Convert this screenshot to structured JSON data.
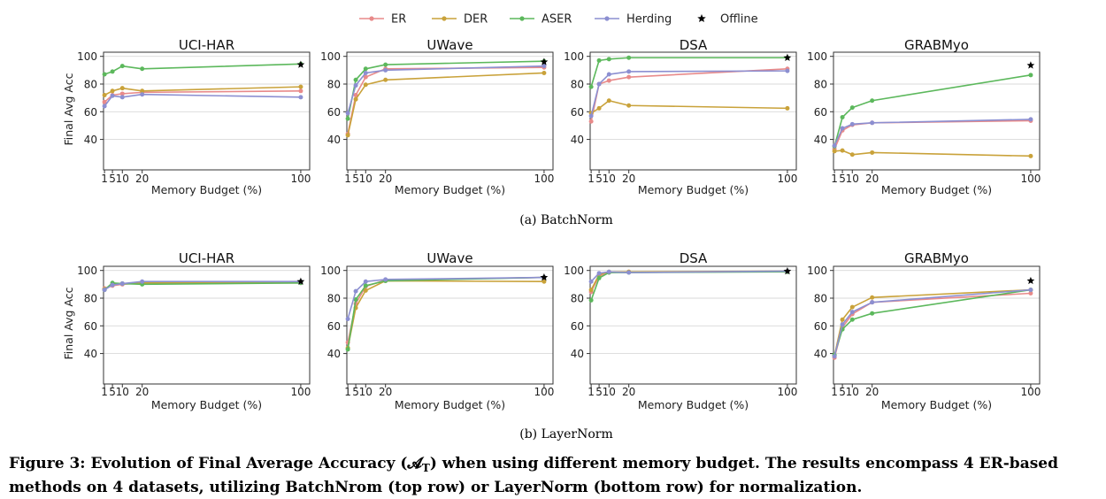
{
  "legend": {
    "items": [
      {
        "name": "ER",
        "color": "#e88a8a",
        "marker": "circle"
      },
      {
        "name": "DER",
        "color": "#c9a23a",
        "marker": "circle"
      },
      {
        "name": "ASER",
        "color": "#5cb85c",
        "marker": "circle"
      },
      {
        "name": "Herding",
        "color": "#8c8fd1",
        "marker": "circle"
      },
      {
        "name": "Offline",
        "color": "#000000",
        "marker": "star"
      }
    ]
  },
  "rows": [
    {
      "caption": "(a)  BatchNorm"
    },
    {
      "caption": "(b)  LayerNorm"
    }
  ],
  "figure_caption": {
    "line1": "Figure 3: Evolution of Final Average Accuracy (𝓐",
    "line1_sub": "T",
    "line1_rest": ") when using different memory budget. The results encompass 4 ER-based",
    "line2": "methods on 4 datasets, utilizing BatchNrom (top row) or LayerNorm (bottom row) for normalization."
  },
  "chart_data": [
    {
      "type": "line",
      "row": 0,
      "title": "UCI-HAR",
      "xlabel": "Memory Budget (%)",
      "ylabel": "Final Avg Acc",
      "x": [
        1,
        5,
        10,
        20,
        100
      ],
      "xticks": [
        "1",
        "5",
        "10",
        "20",
        "100"
      ],
      "ylim": [
        18,
        103
      ],
      "yticks": [
        40,
        60,
        80,
        100
      ],
      "series": [
        {
          "name": "ER",
          "values": [
            67,
            72,
            73,
            74,
            75
          ]
        },
        {
          "name": "DER",
          "values": [
            72,
            75,
            77,
            75,
            78
          ]
        },
        {
          "name": "ASER",
          "values": [
            87,
            89,
            93,
            91,
            94.5
          ]
        },
        {
          "name": "Herding",
          "values": [
            64,
            71.5,
            70.5,
            72.5,
            70.5
          ]
        }
      ],
      "offline": 94
    },
    {
      "type": "line",
      "row": 0,
      "title": "UWave",
      "xlabel": "Memory Budget (%)",
      "ylabel": "",
      "x": [
        1,
        5,
        10,
        20,
        100
      ],
      "xticks": [
        "1",
        "5",
        "10",
        "20",
        "100"
      ],
      "ylim": [
        18,
        103
      ],
      "yticks": [
        40,
        60,
        80,
        100
      ],
      "series": [
        {
          "name": "ER",
          "values": [
            44,
            72,
            85,
            91,
            92
          ]
        },
        {
          "name": "DER",
          "values": [
            43,
            69,
            79.5,
            83,
            88
          ]
        },
        {
          "name": "ASER",
          "values": [
            55,
            83,
            91,
            94,
            96.5
          ]
        },
        {
          "name": "Herding",
          "values": [
            59,
            79,
            88,
            90,
            93
          ]
        }
      ],
      "offline": 96
    },
    {
      "type": "line",
      "row": 0,
      "title": "DSA",
      "xlabel": "Memory Budget (%)",
      "ylabel": "",
      "x": [
        1,
        5,
        10,
        20,
        100
      ],
      "xticks": [
        "1",
        "5",
        "10",
        "20",
        "100"
      ],
      "ylim": [
        18,
        103
      ],
      "yticks": [
        40,
        60,
        80,
        100
      ],
      "series": [
        {
          "name": "ER",
          "values": [
            53,
            80,
            82.5,
            85,
            91
          ]
        },
        {
          "name": "DER",
          "values": [
            59,
            62.5,
            68,
            64.5,
            62.5
          ]
        },
        {
          "name": "ASER",
          "values": [
            78,
            97,
            98,
            99,
            99
          ]
        },
        {
          "name": "Herding",
          "values": [
            57,
            80,
            87,
            89,
            89.5
          ]
        }
      ],
      "offline": 99
    },
    {
      "type": "line",
      "row": 0,
      "title": "GRABMyo",
      "xlabel": "Memory Budget (%)",
      "ylabel": "",
      "x": [
        1,
        5,
        10,
        20,
        100
      ],
      "xticks": [
        "1",
        "5",
        "10",
        "20",
        "100"
      ],
      "ylim": [
        18,
        103
      ],
      "yticks": [
        40,
        60,
        80,
        100
      ],
      "series": [
        {
          "name": "ER",
          "values": [
            33,
            46.5,
            50.5,
            52,
            53.5
          ]
        },
        {
          "name": "DER",
          "values": [
            31.5,
            32,
            29,
            30.5,
            28
          ]
        },
        {
          "name": "ASER",
          "values": [
            35,
            56,
            63,
            68,
            86.5
          ]
        },
        {
          "name": "Herding",
          "values": [
            35.5,
            48,
            51,
            52,
            54.5
          ]
        }
      ],
      "offline": 93.5
    },
    {
      "type": "line",
      "row": 1,
      "title": "UCI-HAR",
      "xlabel": "Memory Budget (%)",
      "ylabel": "Final Avg Acc",
      "x": [
        1,
        5,
        10,
        20,
        100
      ],
      "xticks": [
        "1",
        "5",
        "10",
        "20",
        "100"
      ],
      "ylim": [
        18,
        103
      ],
      "yticks": [
        40,
        60,
        80,
        100
      ],
      "series": [
        {
          "name": "ER",
          "values": [
            87,
            89,
            90,
            91,
            91
          ]
        },
        {
          "name": "DER",
          "values": [
            86.5,
            90,
            90.5,
            91,
            92
          ]
        },
        {
          "name": "ASER",
          "values": [
            86,
            91,
            90.5,
            90,
            91
          ]
        },
        {
          "name": "Herding",
          "values": [
            86,
            89.5,
            90.5,
            92,
            92
          ]
        }
      ],
      "offline": 92
    },
    {
      "type": "line",
      "row": 1,
      "title": "UWave",
      "xlabel": "Memory Budget (%)",
      "ylabel": "",
      "x": [
        1,
        5,
        10,
        20,
        100
      ],
      "xticks": [
        "1",
        "5",
        "10",
        "20",
        "100"
      ],
      "ylim": [
        18,
        103
      ],
      "yticks": [
        40,
        60,
        80,
        100
      ],
      "series": [
        {
          "name": "ER",
          "values": [
            48,
            76,
            88.5,
            93,
            95
          ]
        },
        {
          "name": "DER",
          "values": [
            44,
            73,
            85.5,
            92.5,
            92
          ]
        },
        {
          "name": "ASER",
          "values": [
            43,
            79,
            89,
            92.5,
            95
          ]
        },
        {
          "name": "Herding",
          "values": [
            65,
            85,
            92,
            93.5,
            95
          ]
        }
      ],
      "offline": 95
    },
    {
      "type": "line",
      "row": 1,
      "title": "DSA",
      "xlabel": "Memory Budget (%)",
      "ylabel": "",
      "x": [
        1,
        5,
        10,
        20,
        100
      ],
      "xticks": [
        "1",
        "5",
        "10",
        "20",
        "100"
      ],
      "ylim": [
        18,
        103
      ],
      "yticks": [
        40,
        60,
        80,
        100
      ],
      "series": [
        {
          "name": "ER",
          "values": [
            84.5,
            96,
            98.5,
            99,
            99
          ]
        },
        {
          "name": "DER",
          "values": [
            86,
            97,
            99,
            99,
            99.5
          ]
        },
        {
          "name": "ASER",
          "values": [
            78.5,
            94.5,
            98.5,
            98.5,
            99
          ]
        },
        {
          "name": "Herding",
          "values": [
            92,
            98,
            99,
            98.5,
            99.5
          ]
        }
      ],
      "offline": 99.5
    },
    {
      "type": "line",
      "row": 1,
      "title": "GRABMyo",
      "xlabel": "Memory Budget (%)",
      "ylabel": "",
      "x": [
        1,
        5,
        10,
        20,
        100
      ],
      "xticks": [
        "1",
        "5",
        "10",
        "20",
        "100"
      ],
      "ylim": [
        18,
        103
      ],
      "yticks": [
        40,
        60,
        80,
        100
      ],
      "series": [
        {
          "name": "ER",
          "values": [
            37,
            59,
            68.5,
            77,
            83.5
          ]
        },
        {
          "name": "DER",
          "values": [
            38.5,
            64.5,
            73.5,
            80.5,
            86
          ]
        },
        {
          "name": "ASER",
          "values": [
            39,
            57.5,
            64.5,
            69,
            86
          ]
        },
        {
          "name": "Herding",
          "values": [
            38,
            61,
            70,
            77,
            86
          ]
        }
      ],
      "offline": 92.5
    }
  ]
}
